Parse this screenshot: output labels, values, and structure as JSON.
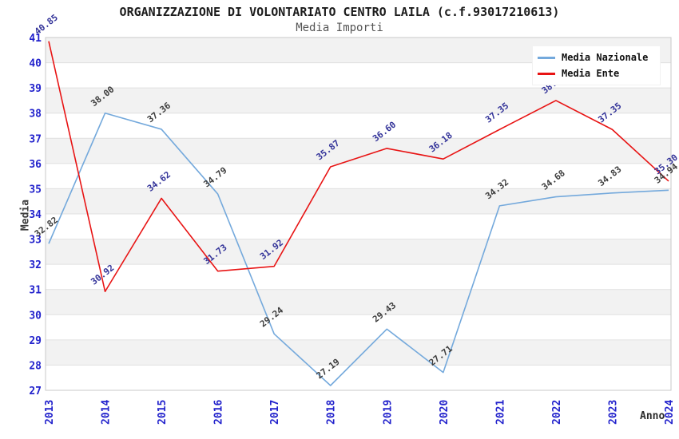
{
  "title": "ORGANIZZAZIONE DI VOLONTARIATO CENTRO LAILA (c.f.93017210613)",
  "subtitle": "Media Importi",
  "legend": {
    "items": [
      {
        "label": "Media Nazionale",
        "color": "#74a9dc"
      },
      {
        "label": "Media Ente",
        "color": "#e81414"
      }
    ]
  },
  "colors": {
    "axis_tick_text": "#2222cc",
    "band_fill": "#f2f2f2",
    "grid_line": "#e0e0e0",
    "plot_border": "#c9c9c9",
    "title_text": "#1c1c1c",
    "subtitle_text": "#555555"
  },
  "chart_data": {
    "type": "line",
    "x": [
      2013,
      2014,
      2015,
      2016,
      2017,
      2018,
      2019,
      2020,
      2021,
      2022,
      2023,
      2024
    ],
    "series": [
      {
        "name": "Media Nazionale",
        "color": "#74a9dc",
        "label_color": "#3d3d3d",
        "values": [
          32.82,
          38.0,
          37.36,
          34.79,
          29.24,
          27.19,
          29.43,
          27.71,
          34.32,
          34.68,
          34.83,
          34.94
        ]
      },
      {
        "name": "Media Ente",
        "color": "#e81414",
        "label_color": "#333399",
        "values": [
          40.85,
          30.92,
          34.62,
          31.73,
          31.92,
          35.87,
          36.6,
          36.18,
          37.35,
          38.5,
          37.35,
          35.3
        ]
      }
    ],
    "title": "ORGANIZZAZIONE DI VOLONTARIATO CENTRO LAILA (c.f.93017210613)",
    "subtitle": "Media Importi",
    "xlabel": "Anno",
    "ylabel": "Media",
    "ylim": [
      27,
      41
    ],
    "ytick_step": 1,
    "grid": true,
    "banded_rows": true,
    "legend_position": "top-right",
    "value_labels_decimals": 2
  }
}
